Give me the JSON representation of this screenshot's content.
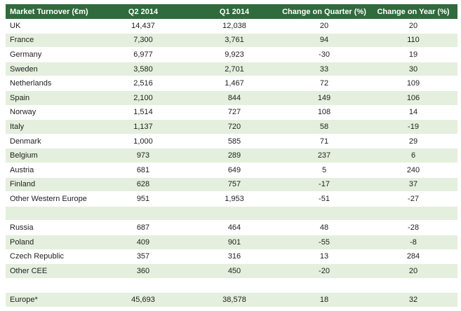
{
  "colors": {
    "header_bg": "#2f6b3c",
    "header_text": "#ffffff",
    "band": "#e4efdd"
  },
  "table": {
    "headers": [
      "Market Turnover (€m)",
      "Q2 2014",
      "Q1 2014",
      "Change on Quarter (%)",
      "Change on Year (%)"
    ],
    "rows": [
      [
        "UK",
        "14,437",
        "12,038",
        "20",
        "20"
      ],
      [
        "France",
        "7,300",
        "3,761",
        "94",
        "110"
      ],
      [
        "Germany",
        "6,977",
        "9,923",
        "-30",
        "19"
      ],
      [
        "Sweden",
        "3,580",
        "2,701",
        "33",
        "30"
      ],
      [
        "Netherlands",
        "2,516",
        "1,467",
        "72",
        "109"
      ],
      [
        "Spain",
        "2,100",
        "844",
        "149",
        "106"
      ],
      [
        "Norway",
        "1,514",
        "727",
        "108",
        "14"
      ],
      [
        "Italy",
        "1,137",
        "720",
        "58",
        "-19"
      ],
      [
        "Denmark",
        "1,000",
        "585",
        "71",
        "29"
      ],
      [
        "Belgium",
        "973",
        "289",
        "237",
        "6"
      ],
      [
        "Austria",
        "681",
        "649",
        "5",
        "240"
      ],
      [
        "Finland",
        "628",
        "757",
        "-17",
        "37"
      ],
      [
        "Other Western Europe",
        "951",
        "1,953",
        "-51",
        "-27"
      ],
      [
        "",
        "",
        "",
        "",
        ""
      ],
      [
        "Russia",
        "687",
        "464",
        "48",
        "-28"
      ],
      [
        "Poland",
        "409",
        "901",
        "-55",
        "-8"
      ],
      [
        "Czech Republic",
        "357",
        "316",
        "13",
        "284"
      ],
      [
        "Other CEE",
        "360",
        "450",
        "-20",
        "20"
      ],
      [
        "",
        "",
        "",
        "",
        ""
      ],
      [
        "Europe*",
        "45,693",
        "38,578",
        "18",
        "32"
      ]
    ]
  }
}
